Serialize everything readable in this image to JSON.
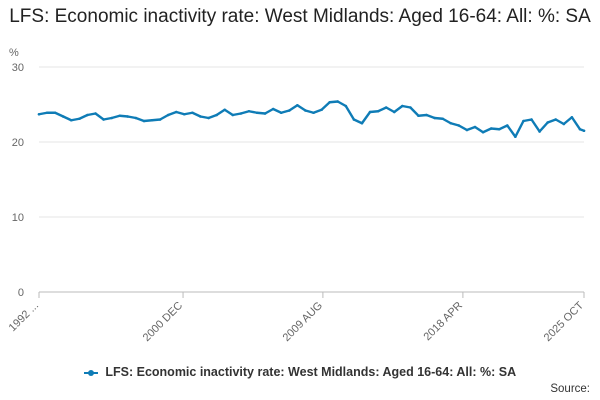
{
  "chart_data": {
    "type": "line",
    "title": "LFS: Economic inactivity rate: West Midlands: Aged 16-64: All: %: SA",
    "ylabel": "%",
    "xlabel": "",
    "ylim": [
      0,
      30
    ],
    "yticks": [
      0,
      10,
      20,
      30
    ],
    "xlim": [
      1992.0,
      2025.75
    ],
    "xticks": [
      {
        "label": "1992 ...",
        "value": 1992.0
      },
      {
        "label": "2000 DEC",
        "value": 2000.92
      },
      {
        "label": "2009 AUG",
        "value": 2009.58
      },
      {
        "label": "2018 APR",
        "value": 2018.25
      },
      {
        "label": "2025 OCT",
        "value": 2025.75
      }
    ],
    "grid": true,
    "legend_position": "bottom",
    "series": [
      {
        "name": "LFS: Economic inactivity rate: West Midlands: Aged 16-64: All: %: SA",
        "color": "#0f7cb6",
        "x": [
          1992.0,
          1992.5,
          1993.0,
          1993.5,
          1994.0,
          1994.5,
          1995.0,
          1995.5,
          1996.0,
          1996.5,
          1997.0,
          1997.5,
          1998.0,
          1998.5,
          1999.0,
          1999.5,
          2000.0,
          2000.5,
          2001.0,
          2001.5,
          2002.0,
          2002.5,
          2003.0,
          2003.5,
          2004.0,
          2004.5,
          2005.0,
          2005.5,
          2006.0,
          2006.5,
          2007.0,
          2007.5,
          2008.0,
          2008.5,
          2009.0,
          2009.5,
          2010.0,
          2010.5,
          2011.0,
          2011.5,
          2012.0,
          2012.5,
          2013.0,
          2013.5,
          2014.0,
          2014.5,
          2015.0,
          2015.5,
          2016.0,
          2016.5,
          2017.0,
          2017.5,
          2018.0,
          2018.5,
          2019.0,
          2019.5,
          2020.0,
          2020.5,
          2021.0,
          2021.5,
          2022.0,
          2022.5,
          2023.0,
          2023.5,
          2024.0,
          2024.5,
          2025.0,
          2025.5,
          2025.75
        ],
        "y": [
          23.7,
          23.9,
          23.9,
          23.4,
          22.9,
          23.1,
          23.6,
          23.8,
          23.0,
          23.2,
          23.5,
          23.4,
          23.2,
          22.8,
          22.9,
          23.0,
          23.6,
          24.0,
          23.7,
          23.9,
          23.4,
          23.2,
          23.6,
          24.3,
          23.6,
          23.8,
          24.1,
          23.9,
          23.8,
          24.4,
          23.9,
          24.2,
          24.9,
          24.2,
          23.9,
          24.3,
          25.3,
          25.4,
          24.8,
          23.0,
          22.5,
          24.0,
          24.1,
          24.6,
          24.0,
          24.8,
          24.6,
          23.5,
          23.6,
          23.2,
          23.1,
          22.5,
          22.2,
          21.6,
          22.0,
          21.3,
          21.8,
          21.7,
          22.2,
          20.7,
          22.8,
          23.0,
          21.4,
          22.6,
          23.0,
          22.4,
          23.3,
          21.7,
          21.5
        ]
      }
    ]
  },
  "legend": {
    "label": "LFS: Economic inactivity rate: West Midlands: Aged 16-64: All: %: SA"
  },
  "source": {
    "label": "Source:"
  }
}
